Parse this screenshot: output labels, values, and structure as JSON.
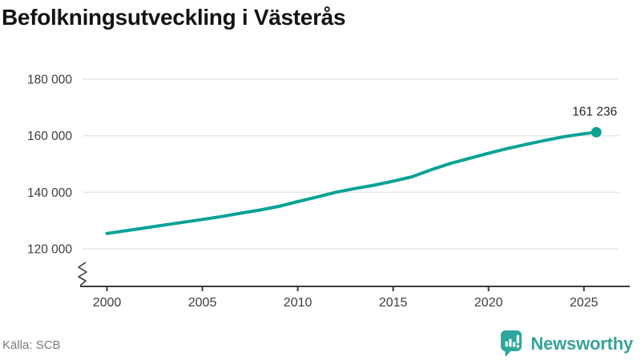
{
  "header": {
    "title": "Befolkningsutveckling i Västerås"
  },
  "chart_data": {
    "type": "line",
    "title": "Befolkningsutveckling i Västerås",
    "xlabel": "",
    "ylabel": "",
    "x": [
      2000,
      2001,
      2002,
      2003,
      2004,
      2005,
      2006,
      2007,
      2008,
      2009,
      2010,
      2011,
      2012,
      2013,
      2014,
      2015,
      2016,
      2017,
      2018,
      2019,
      2020,
      2021,
      2022,
      2023,
      2024,
      2025,
      2025.65
    ],
    "values": [
      125433,
      126400,
      127400,
      128400,
      129400,
      130400,
      131400,
      132600,
      133700,
      135000,
      136700,
      138300,
      140000,
      141300,
      142500,
      143900,
      145500,
      148000,
      150200,
      152000,
      153800,
      155500,
      157000,
      158400,
      159700,
      160700,
      161236
    ],
    "latest": {
      "label": "161 236",
      "value": 161236
    },
    "yticks": {
      "values": [
        120000,
        140000,
        160000,
        180000
      ],
      "labels": [
        "120 000",
        "140 000",
        "160 000",
        "180 000"
      ]
    },
    "xticks": [
      2000,
      2005,
      2010,
      2015,
      2020,
      2025
    ],
    "xlim": [
      1998.6,
      2027.4
    ],
    "ylim": [
      120000,
      185000
    ],
    "axis_break": true,
    "grid": true,
    "legend": "none",
    "colors": {
      "line": "#0AA296",
      "grid": "#E5E5E5",
      "axis": "#3B3B3B",
      "tick_text": "#3D3D3D",
      "label_text": "#262626"
    }
  },
  "footer": {
    "source": "Källa: SCB",
    "brand": "Newsworthy",
    "brand_color": "#38A29A",
    "brand_icon": "chart-speech-bubble-icon"
  }
}
